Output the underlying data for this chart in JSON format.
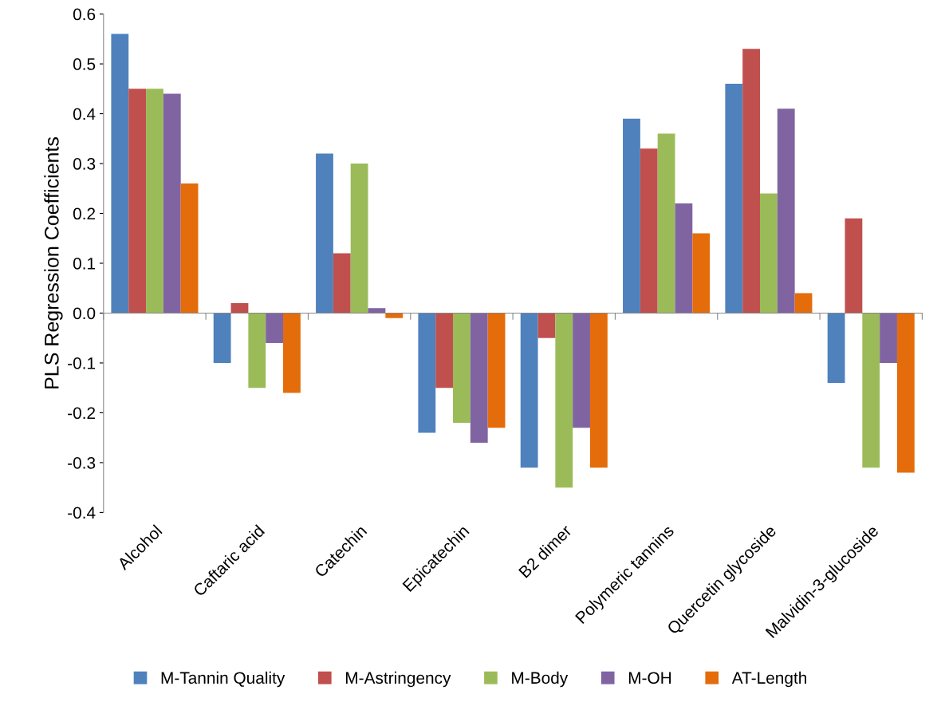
{
  "chart_data": {
    "type": "bar",
    "ylabel": "PLS Regression Coefficients",
    "categories": [
      "Alcohol",
      "Caftaric acid",
      "Catechin",
      "Epicatechin",
      "B2 dimer",
      "Polymeric tannins",
      "Quercetin glycoside",
      "Malvidin-3-glucoside"
    ],
    "series": [
      {
        "name": "M-Tannin Quality",
        "color": "#4f81bd",
        "values": [
          0.56,
          -0.1,
          0.32,
          -0.24,
          -0.31,
          0.39,
          0.46,
          -0.14
        ]
      },
      {
        "name": "M-Astringency",
        "color": "#c0504d",
        "values": [
          0.45,
          0.02,
          0.12,
          -0.15,
          -0.05,
          0.33,
          0.53,
          0.19
        ]
      },
      {
        "name": "M-Body",
        "color": "#9bbb59",
        "values": [
          0.45,
          -0.15,
          0.3,
          -0.22,
          -0.35,
          0.36,
          0.24,
          -0.31
        ]
      },
      {
        "name": "M-OH",
        "color": "#8064a2",
        "values": [
          0.44,
          -0.06,
          0.01,
          -0.26,
          -0.23,
          0.22,
          0.41,
          -0.1
        ]
      },
      {
        "name": "AT-Length",
        "color": "#e46c0a",
        "values": [
          0.26,
          -0.16,
          -0.01,
          -0.23,
          -0.31,
          0.16,
          0.04,
          -0.32
        ]
      }
    ],
    "ylim": [
      -0.4,
      0.6
    ],
    "yticks": [
      -0.4,
      -0.3,
      -0.2,
      -0.1,
      {
        "value": 0,
        "label": "0.0"
      },
      0.1,
      0.2,
      0.3,
      0.4,
      0.5,
      0.6
    ],
    "legend": "bottom"
  }
}
